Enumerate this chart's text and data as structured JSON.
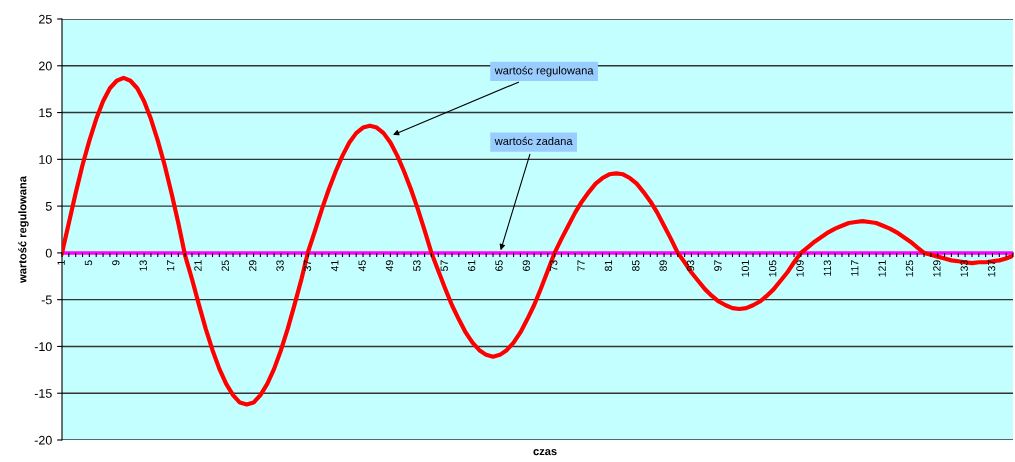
{
  "chart_data": {
    "type": "line",
    "xlabel": "czas",
    "ylabel": "wartość regulowana",
    "categories": [
      "1",
      null,
      null,
      null,
      "5",
      null,
      null,
      null,
      "9",
      null,
      null,
      null,
      "13",
      null,
      null,
      null,
      "17",
      null,
      null,
      null,
      "21",
      null,
      null,
      null,
      "25",
      null,
      null,
      null,
      "29",
      null,
      null,
      null,
      "33",
      null,
      null,
      null,
      "37",
      null,
      null,
      null,
      "41",
      null,
      null,
      null,
      "45",
      null,
      null,
      null,
      "49",
      null,
      null,
      null,
      "53",
      null,
      null,
      null,
      "57",
      null,
      null,
      null,
      "61",
      null,
      null,
      null,
      "65",
      null,
      null,
      null,
      "69",
      null,
      null,
      null,
      "73",
      null,
      null,
      null,
      "77",
      null,
      null,
      null,
      "81",
      null,
      null,
      null,
      "85",
      null,
      null,
      null,
      "89",
      null,
      null,
      null,
      "93",
      null,
      null,
      null,
      "97",
      null,
      null,
      null,
      "101",
      null,
      null,
      null,
      "105",
      null,
      null,
      null,
      "109",
      null,
      null,
      null,
      "113",
      null,
      null,
      null,
      "117",
      null,
      null,
      null,
      "121",
      null,
      null,
      null,
      "125",
      null,
      null,
      null,
      "129",
      null,
      null,
      null,
      "133",
      null,
      null,
      null,
      "137",
      null,
      null,
      null
    ],
    "series": [
      {
        "color": "#ff0000",
        "values": [
          0,
          3.2,
          6.4,
          9.4,
          12.0,
          14.3,
          16.2,
          17.6,
          18.4,
          18.7,
          18.4,
          17.6,
          16.2,
          14.3,
          12.0,
          9.4,
          6.4,
          3.2,
          -0.3,
          -2.8,
          -5.5,
          -8.1,
          -10.4,
          -12.4,
          -14.0,
          -15.2,
          -16.0,
          -16.2,
          -16.0,
          -15.2,
          -14.0,
          -12.4,
          -10.4,
          -8.1,
          -5.5,
          -2.8,
          0.2,
          2.4,
          4.7,
          6.8,
          8.7,
          10.4,
          11.8,
          12.8,
          13.4,
          13.6,
          13.4,
          12.8,
          11.8,
          10.4,
          8.7,
          6.8,
          4.7,
          2.4,
          0,
          -1.9,
          -3.8,
          -5.6,
          -7.1,
          -8.5,
          -9.6,
          -10.4,
          -10.9,
          -11.1,
          -10.9,
          -10.4,
          -9.6,
          -8.5,
          -7.1,
          -5.6,
          -3.8,
          -1.9,
          0,
          1.5,
          2.9,
          4.3,
          5.5,
          6.5,
          7.4,
          8.0,
          8.4,
          8.5,
          8.4,
          8.0,
          7.4,
          6.5,
          5.5,
          4.3,
          2.9,
          1.5,
          0,
          -1.0,
          -2.1,
          -3.0,
          -3.9,
          -4.6,
          -5.2,
          -5.6,
          -5.9,
          -6.0,
          -5.9,
          -5.6,
          -5.2,
          -4.6,
          -3.9,
          -3.0,
          -2.1,
          -1.0,
          0,
          0.6,
          1.2,
          1.7,
          2.2,
          2.6,
          2.9,
          3.2,
          3.3,
          3.4,
          3.3,
          3.2,
          2.9,
          2.6,
          2.2,
          1.7,
          1.2,
          0.6,
          0,
          -0.2,
          -0.4,
          -0.6,
          -0.8,
          -0.9,
          -1.0,
          -1.1,
          -1.0,
          -1.0,
          -0.9,
          -0.8,
          -0.6,
          -0.3
        ]
      }
    ],
    "ylim": [
      -20,
      25
    ],
    "yticks": [
      -20,
      -15,
      -10,
      -5,
      0,
      5,
      10,
      15,
      20,
      25
    ],
    "grid": "y",
    "marker": "none",
    "line_style": "solid",
    "ref_lines": [
      {
        "axis": "y",
        "value": 0,
        "color": "#ff00ff"
      }
    ],
    "annotations": [
      {
        "text": "wartośc regulowana",
        "x": "49",
        "y": 12.5
      },
      {
        "text": "wartośc zadana",
        "x": "65",
        "y": 0
      }
    ]
  }
}
